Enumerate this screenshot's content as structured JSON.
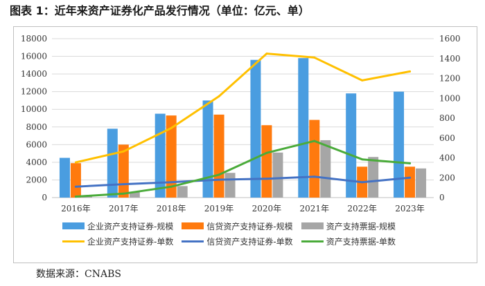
{
  "figure": {
    "title": "图表 1：近年来资产证券化产品发行情况（单位：亿元、单）",
    "source": "数据来源：CNABS"
  },
  "chart_data": {
    "type": "bar",
    "categories": [
      "2016年",
      "2017年",
      "2018年",
      "2019年",
      "2020年",
      "2021年",
      "2022年",
      "2023年"
    ],
    "left_axis": {
      "min": 0,
      "max": 18000,
      "step": 2000,
      "ticks": [
        "0",
        "2000",
        "4000",
        "6000",
        "8000",
        "10000",
        "12000",
        "14000",
        "16000",
        "18000"
      ]
    },
    "right_axis": {
      "min": 0,
      "max": 1600,
      "step": 200,
      "ticks": [
        "0",
        "200",
        "400",
        "600",
        "800",
        "1000",
        "1200",
        "1400",
        "1600"
      ]
    },
    "bar_series": [
      {
        "name": "企业资产支持证券-规模",
        "color": "#4a9de0",
        "values": [
          4500,
          7800,
          9500,
          11000,
          15600,
          15800,
          11800,
          12000
        ]
      },
      {
        "name": "信贷资产支持证券-规模",
        "color": "#ff7a0e",
        "values": [
          3900,
          6000,
          9300,
          9400,
          8200,
          8800,
          3500,
          3500
        ]
      },
      {
        "name": "资产支持票据-规模",
        "color": "#a6a6a6",
        "values": [
          200,
          600,
          1300,
          2800,
          5100,
          6500,
          4600,
          3300
        ]
      }
    ],
    "line_series": [
      {
        "name": "企业资产支持证券-单数",
        "color": "#ffc000",
        "values": [
          355,
          465,
          700,
          1020,
          1450,
          1410,
          1180,
          1270
        ]
      },
      {
        "name": "信贷资产支持证券-单数",
        "color": "#4472c4",
        "values": [
          110,
          135,
          155,
          180,
          190,
          210,
          155,
          200
        ]
      },
      {
        "name": "资产支持票据-单数",
        "color": "#4aab3a",
        "values": [
          10,
          40,
          110,
          230,
          450,
          570,
          385,
          345
        ]
      }
    ]
  }
}
